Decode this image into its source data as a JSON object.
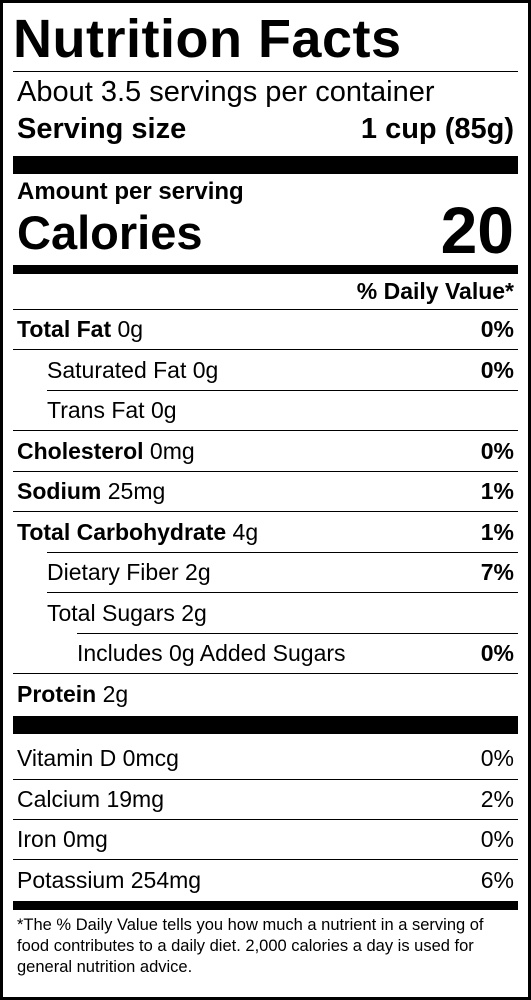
{
  "title": "Nutrition Facts",
  "servings_per_container": "About 3.5 servings per container",
  "serving_size": {
    "label": "Serving size",
    "value": "1 cup (85g)"
  },
  "amount_per_serving": "Amount per serving",
  "calories": {
    "label": "Calories",
    "value": "20"
  },
  "dv_header": "% Daily Value*",
  "nutrients": [
    {
      "name": "Total Fat",
      "amount": " 0g",
      "dv": "0%"
    },
    {
      "name": "Saturated Fat 0g",
      "amount": "",
      "dv": "0%"
    },
    {
      "name": "Trans Fat 0g",
      "amount": "",
      "dv": ""
    },
    {
      "name": "Cholesterol",
      "amount": " 0mg",
      "dv": "0%"
    },
    {
      "name": "Sodium",
      "amount": " 25mg",
      "dv": "1%"
    },
    {
      "name": "Total Carbohydrate",
      "amount": " 4g",
      "dv": "1%"
    },
    {
      "name": "Dietary Fiber 2g",
      "amount": "",
      "dv": "7%"
    },
    {
      "name": "Total Sugars 2g",
      "amount": "",
      "dv": ""
    },
    {
      "name": "Includes 0g Added Sugars",
      "amount": "",
      "dv": "0%"
    },
    {
      "name": "Protein",
      "amount": " 2g",
      "dv": ""
    }
  ],
  "vitamins": [
    {
      "name": "Vitamin D 0mcg",
      "dv": "0%"
    },
    {
      "name": "Calcium 19mg",
      "dv": "2%"
    },
    {
      "name": "Iron 0mg",
      "dv": "0%"
    },
    {
      "name": "Potassium 254mg",
      "dv": "6%"
    }
  ],
  "footnote": "*The % Daily Value tells you how much a nutrient in a serving of food contributes to a daily diet. 2,000 calories a day is used for general nutrition advice."
}
